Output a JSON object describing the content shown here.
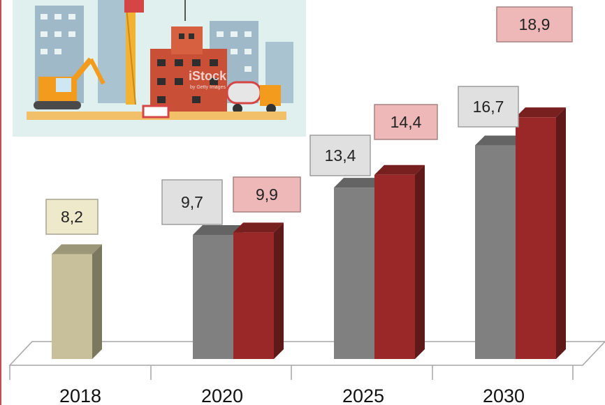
{
  "chart_data": {
    "type": "bar",
    "categories": [
      "2018",
      "2020",
      "2025",
      "2030"
    ],
    "series": [
      {
        "values": [
          8.2,
          null,
          null,
          null
        ],
        "labels": [
          "8,2",
          "",
          "",
          ""
        ],
        "color": "#c8c09a",
        "label_bg": "#efe9cc"
      },
      {
        "values": [
          null,
          9.7,
          13.4,
          16.7
        ],
        "labels": [
          "",
          "9,7",
          "13,4",
          "16,7"
        ],
        "color": "#808080",
        "label_bg": "#e0e0e0"
      },
      {
        "values": [
          null,
          9.9,
          14.4,
          18.9
        ],
        "labels": [
          "",
          "9,9",
          "14,4",
          "18,9"
        ],
        "color": "#9a2828",
        "label_bg": "#eeb8b8"
      }
    ],
    "grid": false,
    "legend": "none"
  },
  "illustration": {
    "description_icon": "construction-site-illustration",
    "watermark": "iStock",
    "watermark_sub": "by Getty Images"
  },
  "colors": {
    "left_border": "#c0504d",
    "floor": "#ffffff",
    "floor_stroke": "#a6a6a6"
  }
}
